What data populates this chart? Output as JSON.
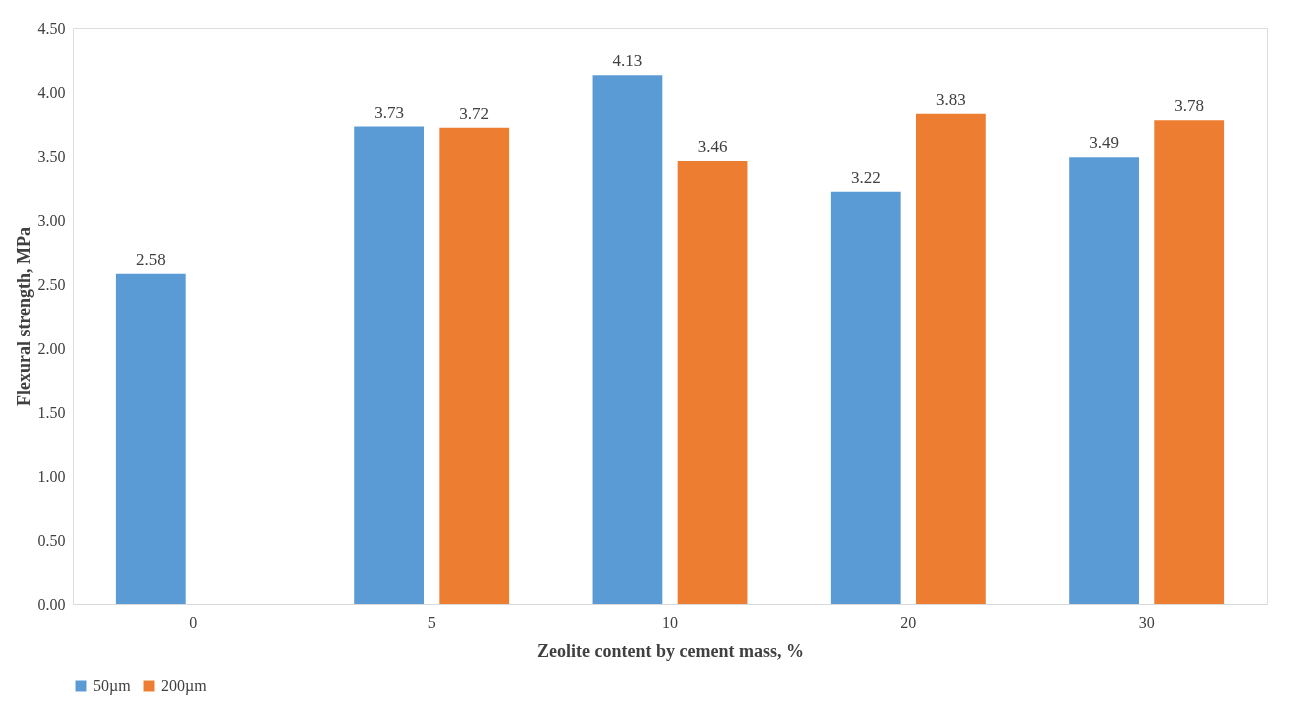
{
  "chart_data": {
    "type": "bar",
    "xlabel": "Zeolite content by cement mass, %",
    "ylabel": "Flexural strength, MPa",
    "categories": [
      "0",
      "5",
      "10",
      "20",
      "30"
    ],
    "series": [
      {
        "name": "50µm",
        "color": "#5b9bd5",
        "values": [
          2.58,
          3.73,
          4.13,
          3.22,
          3.49
        ]
      },
      {
        "name": "200µm",
        "color": "#ed7d31",
        "values": [
          null,
          3.72,
          3.46,
          3.83,
          3.78
        ]
      }
    ],
    "ylim": [
      0,
      4.5
    ],
    "yticks": [
      {
        "value": 0,
        "label": "0.00"
      },
      {
        "value": 0.5,
        "label": "0.50"
      },
      {
        "value": 1,
        "label": "1.00"
      },
      {
        "value": 1.5,
        "label": "1.50"
      },
      {
        "value": 2,
        "label": "2.00"
      },
      {
        "value": 2.5,
        "label": "2.50"
      },
      {
        "value": 3,
        "label": "3.00"
      },
      {
        "value": 3.5,
        "label": "3.50"
      },
      {
        "value": 4,
        "label": "4.00"
      },
      {
        "value": 4.5,
        "label": "4.50"
      }
    ],
    "data_labels": true,
    "grid": false,
    "legend": "bottom"
  }
}
